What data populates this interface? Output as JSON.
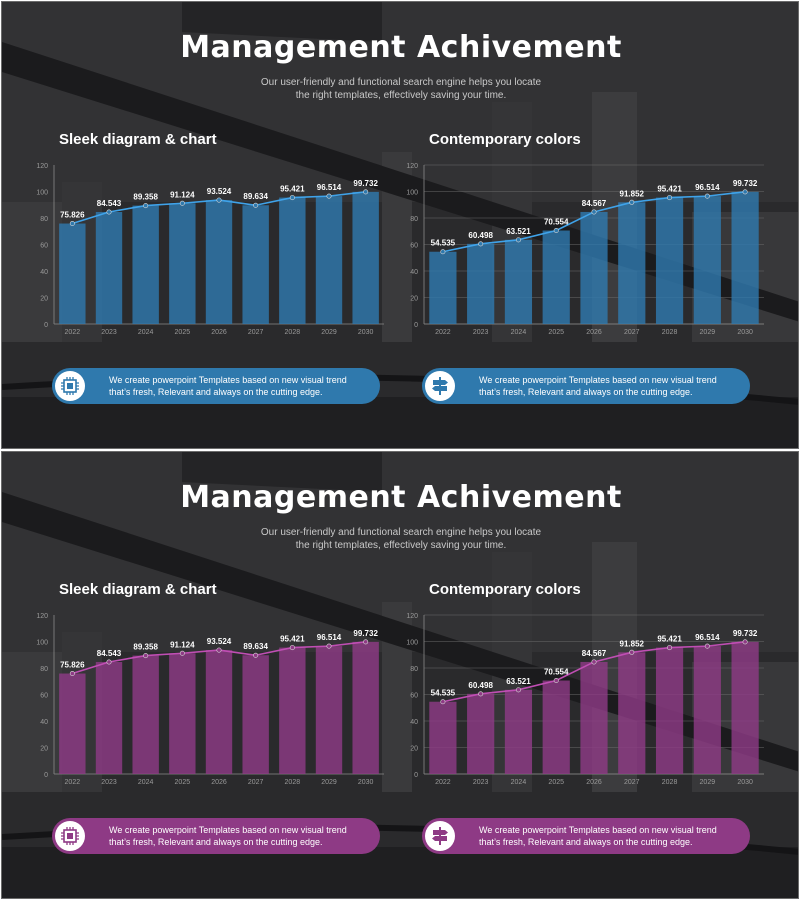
{
  "slides": [
    {
      "title": "Management Achivement",
      "subtitle_line1": "Our user-friendly and functional search engine helps you locate",
      "subtitle_line2": "the right templates, effectively saving your time.",
      "accent": "#2f79ad",
      "left": {
        "title": "Sleek diagram & chart",
        "pill_text_line1": "We create powerpoint  Templates based on  new visual trend",
        "pill_text_line2": "that’s fresh, Relevant and always on the cutting edge.",
        "icon": "chip-icon"
      },
      "right": {
        "title": "Contemporary colors",
        "pill_text_line1": "We create powerpoint  Templates based on  new visual trend",
        "pill_text_line2": "that’s fresh, Relevant and always on the cutting edge.",
        "icon": "signpost-icon"
      }
    },
    {
      "title": "Management Achivement",
      "subtitle_line1": "Our user-friendly and functional search engine helps you locate",
      "subtitle_line2": "the right templates, effectively saving your time.",
      "accent": "#8e3a85",
      "left": {
        "title": "Sleek diagram & chart",
        "pill_text_line1": "We create powerpoint  Templates based on  new visual trend",
        "pill_text_line2": "that’s fresh, Relevant and always on the cutting edge.",
        "icon": "chip-icon"
      },
      "right": {
        "title": "Contemporary colors",
        "pill_text_line1": "We create powerpoint  Templates based on  new visual trend",
        "pill_text_line2": "that’s fresh, Relevant and always on the cutting edge.",
        "icon": "signpost-icon"
      }
    }
  ],
  "chart_data": [
    {
      "type": "bar",
      "categories": [
        "2022",
        "2023",
        "2024",
        "2025",
        "2026",
        "2027",
        "2028",
        "2029",
        "2030"
      ],
      "values": [
        75.826,
        84.543,
        89.358,
        91.124,
        93.524,
        89.634,
        95.421,
        96.514,
        99.732
      ],
      "data_labels": [
        "75.826",
        "84.543",
        "89.358",
        "91.124",
        "93.524",
        "89.634",
        "95.421",
        "96.514",
        "99.732"
      ],
      "overlay": "line",
      "yticks": [
        "0",
        "20",
        "40",
        "60",
        "80",
        "100",
        "120"
      ],
      "ylim": [
        0,
        120
      ],
      "grid": false,
      "color": "#2f79ad"
    },
    {
      "type": "bar",
      "categories": [
        "2022",
        "2023",
        "2024",
        "2025",
        "2026",
        "2027",
        "2028",
        "2029",
        "2030"
      ],
      "values": [
        54.535,
        60.498,
        63.521,
        70.554,
        84.567,
        91.852,
        95.421,
        96.514,
        99.732
      ],
      "data_labels": [
        "54.535",
        "60.498",
        "63.521",
        "70.554",
        "84.567",
        "91.852",
        "95.421",
        "96.514",
        "99.732"
      ],
      "overlay": "line",
      "yticks": [
        "0",
        "20",
        "40",
        "60",
        "80",
        "100",
        "120"
      ],
      "ylim": [
        0,
        120
      ],
      "grid": true,
      "color": "#2f79ad"
    },
    {
      "type": "bar",
      "categories": [
        "2022",
        "2023",
        "2024",
        "2025",
        "2026",
        "2027",
        "2028",
        "2029",
        "2030"
      ],
      "values": [
        75.826,
        84.543,
        89.358,
        91.124,
        93.524,
        89.634,
        95.421,
        96.514,
        99.732
      ],
      "data_labels": [
        "75.826",
        "84.543",
        "89.358",
        "91.124",
        "93.524",
        "89.634",
        "95.421",
        "96.514",
        "99.732"
      ],
      "overlay": "line",
      "yticks": [
        "0",
        "20",
        "40",
        "60",
        "80",
        "100",
        "120"
      ],
      "ylim": [
        0,
        120
      ],
      "grid": false,
      "color": "#8e3a85"
    },
    {
      "type": "bar",
      "categories": [
        "2022",
        "2023",
        "2024",
        "2025",
        "2026",
        "2027",
        "2028",
        "2029",
        "2030"
      ],
      "values": [
        54.535,
        60.498,
        63.521,
        70.554,
        84.567,
        91.852,
        95.421,
        96.514,
        99.732
      ],
      "data_labels": [
        "54.535",
        "60.498",
        "63.521",
        "70.554",
        "84.567",
        "91.852",
        "95.421",
        "96.514",
        "99.732"
      ],
      "overlay": "line",
      "yticks": [
        "0",
        "20",
        "40",
        "60",
        "80",
        "100",
        "120"
      ],
      "ylim": [
        0,
        120
      ],
      "grid": true,
      "color": "#8e3a85"
    }
  ]
}
